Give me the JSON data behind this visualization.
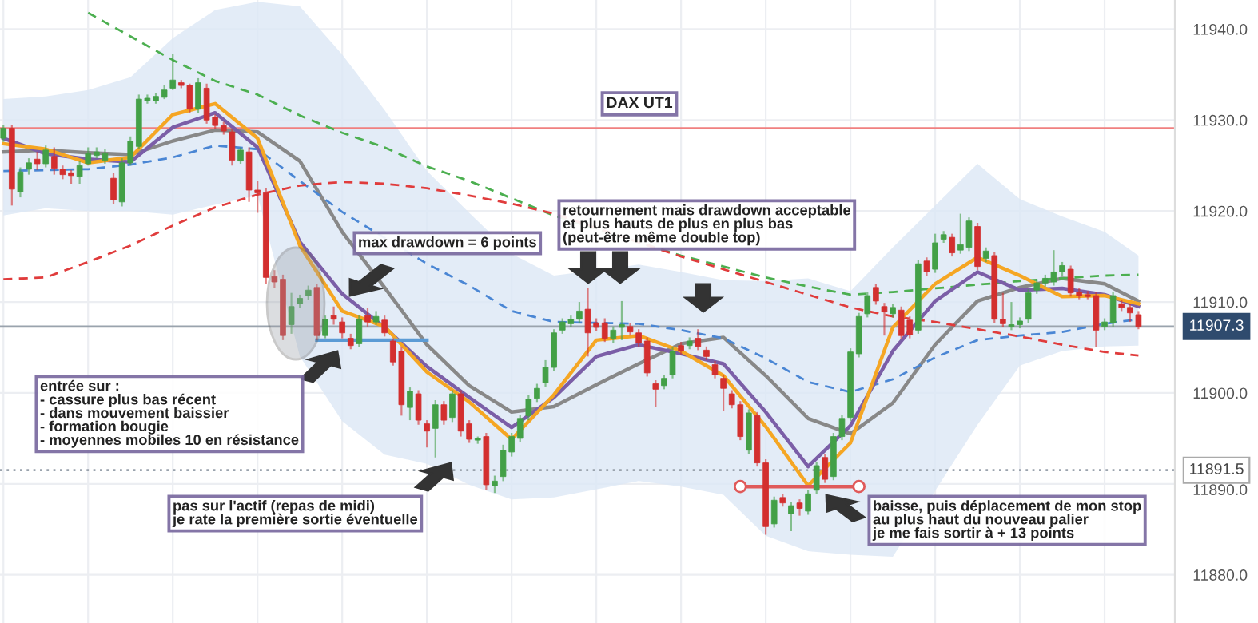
{
  "chart_data": {
    "type": "candlestick",
    "title": "DAX UT1",
    "categories": [
      null,
      null,
      null,
      null,
      null,
      null,
      null,
      null,
      null,
      null,
      null,
      null,
      null,
      null,
      null,
      null,
      null,
      null,
      null,
      null,
      null,
      null,
      null,
      null,
      null,
      null,
      null,
      null,
      null,
      null,
      null,
      null,
      null,
      null,
      null,
      null,
      null,
      null,
      null,
      null,
      null,
      null,
      null,
      null,
      null,
      null,
      null,
      null,
      null,
      null,
      null,
      null,
      null,
      null,
      null,
      null,
      null,
      null,
      null,
      null,
      null,
      null,
      null,
      null,
      null,
      null,
      null,
      null,
      null,
      null,
      null,
      null,
      null,
      null,
      null,
      null,
      null,
      null,
      null,
      null,
      null,
      null,
      null,
      null,
      null,
      null,
      null,
      null,
      null,
      null,
      null,
      null,
      null,
      null,
      null,
      null,
      null,
      null,
      null,
      null,
      null,
      null,
      null,
      null,
      null,
      null,
      null,
      null,
      null,
      null,
      null,
      null,
      null,
      null,
      null,
      null,
      null,
      null,
      null,
      null,
      null,
      null,
      null,
      null,
      null,
      null,
      null,
      null,
      null,
      null,
      null,
      null,
      null,
      null,
      null
    ],
    "ohlc": [
      [
        11928.0,
        11929.5,
        11927.6,
        11929.1
      ],
      [
        11929.1,
        11929.5,
        11920.6,
        11922.4
      ],
      [
        11922.1,
        11924.8,
        11921.5,
        11924.3
      ],
      [
        11924.6,
        11925.8,
        11924.0,
        11925.3
      ],
      [
        11925.7,
        11926.5,
        11924.5,
        11925.2
      ],
      [
        11925.2,
        11927.2,
        11924.8,
        11926.7
      ],
      [
        11926.0,
        11927.0,
        11924.0,
        11924.7
      ],
      [
        11924.6,
        11925.0,
        11923.5,
        11924.0
      ],
      [
        11924.2,
        11924.5,
        11923.0,
        11923.9
      ],
      [
        11923.8,
        11925.5,
        11923.0,
        11925.0
      ],
      [
        11925.2,
        11927.0,
        11925.0,
        11926.3
      ],
      [
        11926.1,
        11927.0,
        11925.8,
        11926.5
      ],
      [
        11925.6,
        11926.8,
        11925.2,
        11926.3
      ],
      [
        11923.6,
        11924.2,
        11920.8,
        11921.2
      ],
      [
        11921.0,
        11925.8,
        11920.5,
        11925.3
      ],
      [
        11925.3,
        11928.2,
        11925.0,
        11927.7
      ],
      [
        11927.1,
        11932.8,
        11926.8,
        11932.3
      ],
      [
        11932.1,
        11932.8,
        11931.8,
        11932.4
      ],
      [
        11932.1,
        11933.0,
        11931.8,
        11932.6
      ],
      [
        11932.5,
        11933.8,
        11932.3,
        11933.3
      ],
      [
        11933.5,
        11937.3,
        11933.3,
        11934.4
      ],
      [
        11934.1,
        11934.4,
        11933.5,
        11933.8
      ],
      [
        11933.8,
        11934.0,
        11930.8,
        11931.2
      ],
      [
        11931.2,
        11934.6,
        11930.8,
        11934.1
      ],
      [
        11933.5,
        11934.0,
        11929.6,
        11930.0
      ],
      [
        11930.3,
        11930.6,
        11929.0,
        11929.4
      ],
      [
        11929.4,
        11929.8,
        11928.4,
        11928.8
      ],
      [
        11928.7,
        11929.0,
        11925.0,
        11925.6
      ],
      [
        11925.5,
        11927.0,
        11925.2,
        11926.7
      ],
      [
        11926.5,
        11927.0,
        11921.0,
        11922.3
      ],
      [
        11922.3,
        11923.3,
        11919.8,
        11922.0
      ],
      [
        11922.0,
        11922.5,
        11912.0,
        11912.7
      ],
      [
        11912.8,
        11913.5,
        11911.5,
        11912.2
      ],
      [
        11912.5,
        11913.0,
        11905.8,
        11906.3
      ],
      [
        11907.5,
        11911.0,
        11906.5,
        11909.5
      ],
      [
        11909.8,
        11910.8,
        11909.3,
        11910.4
      ],
      [
        11910.7,
        11911.8,
        11910.2,
        11911.3
      ],
      [
        11911.6,
        11912.0,
        11905.8,
        11906.3
      ],
      [
        11906.3,
        11908.5,
        11906.0,
        11908.1
      ],
      [
        11908.5,
        11909.5,
        11907.5,
        11908.1
      ],
      [
        11907.8,
        11908.3,
        11906.0,
        11906.6
      ],
      [
        11906.0,
        11906.5,
        11904.8,
        11905.2
      ],
      [
        11905.4,
        11908.5,
        11905.0,
        11908.1
      ],
      [
        11908.5,
        11909.3,
        11907.3,
        11907.8
      ],
      [
        11907.8,
        11909.0,
        11907.5,
        11908.4
      ],
      [
        11908.0,
        11908.5,
        11906.2,
        11906.6
      ],
      [
        11905.7,
        11906.0,
        11903.0,
        11903.4
      ],
      [
        11904.6,
        11905.0,
        11897.5,
        11898.7
      ],
      [
        11898.4,
        11900.6,
        11897.0,
        11900.2
      ],
      [
        11899.9,
        11900.3,
        11896.5,
        11897.0
      ],
      [
        11896.6,
        11897.0,
        11894.0,
        11895.8
      ],
      [
        11896.1,
        11899.2,
        11892.9,
        11898.7
      ],
      [
        11898.7,
        11899.1,
        11896.5,
        11897.0
      ],
      [
        11897.3,
        11900.3,
        11896.8,
        11899.9
      ],
      [
        11899.9,
        11900.3,
        11895.2,
        11895.8
      ],
      [
        11896.6,
        11897.0,
        11894.5,
        11894.9
      ],
      [
        11894.8,
        11895.2,
        11894.4,
        11895.0
      ],
      [
        11895.2,
        11895.6,
        11889.3,
        11889.9
      ],
      [
        11889.8,
        11890.9,
        11889.0,
        11890.3
      ],
      [
        11890.8,
        11894.3,
        11890.3,
        11893.7
      ],
      [
        11893.5,
        11895.6,
        11893.0,
        11895.2
      ],
      [
        11895.0,
        11897.6,
        11894.6,
        11897.2
      ],
      [
        11897.5,
        11899.8,
        11897.0,
        11899.3
      ],
      [
        11899.4,
        11901.0,
        11899.0,
        11900.5
      ],
      [
        11901.1,
        11903.6,
        11900.7,
        11902.8
      ],
      [
        11902.8,
        11907.0,
        11902.4,
        11906.6
      ],
      [
        11906.9,
        11908.2,
        11906.5,
        11907.8
      ],
      [
        11907.6,
        11908.5,
        11907.2,
        11908.1
      ],
      [
        11908.1,
        11910.0,
        11907.7,
        11909.0
      ],
      [
        11909.2,
        11911.5,
        11904.0,
        11906.6
      ],
      [
        11907.7,
        11908.2,
        11906.8,
        11907.2
      ],
      [
        11907.7,
        11908.2,
        11905.6,
        11906.0
      ],
      [
        11906.0,
        11907.3,
        11905.5,
        11906.9
      ],
      [
        11907.2,
        11910.1,
        11905.8,
        11907.5
      ],
      [
        11907.3,
        11907.7,
        11906.3,
        11906.7
      ],
      [
        11906.6,
        11907.0,
        11905.1,
        11905.5
      ],
      [
        11905.7,
        11906.1,
        11901.8,
        11902.2
      ],
      [
        11901.0,
        11901.4,
        11898.5,
        11900.4
      ],
      [
        11900.8,
        11902.0,
        11900.4,
        11901.6
      ],
      [
        11902.0,
        11905.0,
        11901.6,
        11904.6
      ],
      [
        11905.2,
        11905.6,
        11904.2,
        11904.6
      ],
      [
        11905.2,
        11906.1,
        11904.8,
        11905.7
      ],
      [
        11906.0,
        11907.0,
        11904.7,
        11905.1
      ],
      [
        11904.7,
        11905.1,
        11903.6,
        11904.0
      ],
      [
        11903.1,
        11903.5,
        11901.6,
        11902.0
      ],
      [
        11901.6,
        11902.0,
        11898.0,
        11900.5
      ],
      [
        11899.9,
        11900.3,
        11898.3,
        11898.7
      ],
      [
        11898.7,
        11899.1,
        11894.8,
        11895.2
      ],
      [
        11893.7,
        11898.2,
        11893.3,
        11897.8
      ],
      [
        11897.5,
        11897.9,
        11891.9,
        11892.3
      ],
      [
        11892.3,
        11892.7,
        11884.4,
        11885.3
      ],
      [
        11885.6,
        11888.6,
        11885.2,
        11888.2
      ],
      [
        11888.5,
        11888.9,
        11887.5,
        11887.9
      ],
      [
        11886.7,
        11888.0,
        11884.8,
        11887.6
      ],
      [
        11887.9,
        11888.3,
        11886.5,
        11887.3
      ],
      [
        11887.0,
        11889.3,
        11886.6,
        11888.9
      ],
      [
        11889.3,
        11892.4,
        11888.9,
        11892.0
      ],
      [
        11892.9,
        11893.3,
        11890.1,
        11890.5
      ],
      [
        11890.8,
        11895.6,
        11890.4,
        11895.2
      ],
      [
        11895.2,
        11897.6,
        11894.8,
        11897.2
      ],
      [
        11897.3,
        11904.9,
        11896.9,
        11904.5
      ],
      [
        11904.3,
        11908.8,
        11903.9,
        11908.4
      ],
      [
        11908.7,
        11911.1,
        11908.3,
        11910.7
      ],
      [
        11911.6,
        11912.0,
        11909.7,
        11910.1
      ],
      [
        11909.5,
        11909.9,
        11906.3,
        11908.9
      ],
      [
        11908.7,
        11909.8,
        11908.3,
        11909.4
      ],
      [
        11909.1,
        11909.5,
        11905.9,
        11906.3
      ],
      [
        11908.0,
        11908.4,
        11906.0,
        11906.4
      ],
      [
        11906.9,
        11914.6,
        11906.5,
        11914.2
      ],
      [
        11914.5,
        11914.9,
        11912.9,
        11913.3
      ],
      [
        11913.6,
        11917.5,
        11913.2,
        11916.5
      ],
      [
        11916.9,
        11917.8,
        11916.5,
        11917.4
      ],
      [
        11917.1,
        11917.5,
        11915.0,
        11915.4
      ],
      [
        11915.7,
        11919.7,
        11915.3,
        11916.3
      ],
      [
        11916.0,
        11919.3,
        11915.6,
        11918.9
      ],
      [
        11918.3,
        11918.7,
        11913.5,
        11913.9
      ],
      [
        11914.8,
        11916.0,
        11914.4,
        11915.6
      ],
      [
        11915.1,
        11915.5,
        11907.7,
        11908.1
      ],
      [
        11908.1,
        11911.0,
        11907.2,
        11907.6
      ],
      [
        11907.3,
        11910.0,
        11906.9,
        11907.5
      ],
      [
        11907.5,
        11908.3,
        11907.1,
        11907.9
      ],
      [
        11908.1,
        11911.4,
        11907.7,
        11911.0
      ],
      [
        11911.3,
        11912.5,
        11910.9,
        11912.1
      ],
      [
        11912.1,
        11913.0,
        11911.7,
        11912.6
      ],
      [
        11912.2,
        11915.7,
        11911.8,
        11913.3
      ],
      [
        11913.3,
        11914.4,
        11912.9,
        11914.0
      ],
      [
        11913.6,
        11914.0,
        11910.6,
        11911.0
      ],
      [
        11911.1,
        11911.5,
        11910.3,
        11910.7
      ],
      [
        11910.8,
        11911.2,
        11910.3,
        11910.6
      ],
      [
        11910.7,
        11911.1,
        11905.0,
        11906.9
      ],
      [
        11907.3,
        11908.2,
        11906.9,
        11907.8
      ],
      [
        11907.7,
        11911.1,
        11907.3,
        11910.7
      ],
      [
        11909.8,
        11910.2,
        11909.0,
        11909.4
      ],
      [
        11909.4,
        11909.8,
        11907.8,
        11908.8
      ],
      [
        11908.6,
        11909.0,
        11907.0,
        11907.3
      ]
    ],
    "series": [
      {
        "type": "line",
        "color": "#888888",
        "line_style": "solid",
        "values": [
          11926.5,
          null,
          null,
          null,
          null,
          11926.7,
          null,
          null,
          null,
          null,
          11926.4,
          null,
          null,
          null,
          null,
          11926.2,
          null,
          null,
          null,
          null,
          11927.7,
          null,
          null,
          null,
          null,
          11928.9,
          null,
          null,
          null,
          null,
          11928.7,
          null,
          null,
          null,
          null,
          11925.5,
          null,
          null,
          null,
          null,
          11917.7,
          null,
          null,
          null,
          null,
          11911.6,
          null,
          null,
          null,
          null,
          11905.3,
          null,
          null,
          null,
          null,
          11900.8,
          null,
          null,
          null,
          null,
          11897.9,
          null,
          null,
          null,
          null,
          11898.5,
          null,
          null,
          null,
          null,
          11900.9,
          null,
          null,
          null,
          null,
          11903.2,
          null,
          null,
          null,
          null,
          11905.4,
          null,
          null,
          null,
          null,
          11906.1,
          null,
          null,
          null,
          null,
          11901.9,
          null,
          null,
          null,
          null,
          11897.2,
          null,
          null,
          null,
          null,
          11895.5,
          null,
          null,
          null,
          null,
          11898.9,
          null,
          null,
          null,
          null,
          11905.3,
          null,
          null,
          null,
          null,
          11910.1,
          null,
          null,
          null,
          null,
          11911.6,
          null,
          null,
          null,
          null,
          11912.6,
          null,
          null,
          null,
          null,
          11912.0,
          null,
          null,
          null,
          11910.1
        ],
        "upper": [
          11932.3,
          null,
          null,
          null,
          null,
          11932.6,
          null,
          null,
          null,
          null,
          11933.3,
          null,
          null,
          null,
          null,
          11934.7,
          null,
          null,
          null,
          null,
          11939.0,
          null,
          null,
          null,
          null,
          11942.1,
          null,
          null,
          null,
          null,
          11943.0,
          null,
          null,
          null,
          null,
          11942.5,
          null,
          null,
          null,
          null,
          11937.2,
          null,
          null,
          null,
          null,
          11931.1,
          null,
          null,
          null,
          null,
          11924.4,
          null,
          null,
          null,
          null,
          11919.8,
          null,
          null,
          null,
          null,
          11915.3,
          null,
          null,
          null,
          null,
          11912.9,
          null,
          null,
          null,
          null,
          null,
          null,
          null,
          null,
          null,
          11914.1,
          null,
          null,
          null,
          null,
          11913.3,
          null,
          null,
          null,
          null,
          11912.4,
          null,
          null,
          null,
          null,
          11912.3,
          null,
          null,
          null,
          null,
          11912.6,
          null,
          null,
          null,
          null,
          11911.2,
          null,
          null,
          null,
          null,
          11916.0,
          null,
          null,
          null,
          null,
          null,
          null,
          null,
          null,
          null,
          11925.2,
          null,
          null,
          null,
          null,
          11921.3,
          null,
          null,
          null,
          null,
          11919.4,
          null,
          null,
          null,
          null,
          11917.7,
          null,
          null,
          null,
          11915.1
        ],
        "lower": [
          11919.5,
          null,
          null,
          null,
          null,
          11920.3,
          null,
          null,
          null,
          null,
          11920.0,
          null,
          null,
          null,
          null,
          11920.0,
          null,
          null,
          null,
          null,
          11919.6,
          null,
          null,
          null,
          null,
          11920.7,
          null,
          null,
          null,
          null,
          11921.7,
          null,
          null,
          null,
          null,
          11904.0,
          null,
          null,
          null,
          null,
          11896.9,
          null,
          null,
          null,
          null,
          11893.2,
          null,
          null,
          null,
          null,
          11892.2,
          null,
          null,
          null,
          null,
          11889.9,
          null,
          null,
          null,
          null,
          11888.3,
          null,
          null,
          null,
          null,
          11888.5,
          null,
          null,
          null,
          null,
          null,
          null,
          null,
          null,
          null,
          11890.3,
          null,
          null,
          null,
          null,
          11889.7,
          null,
          null,
          null,
          null,
          11888.8,
          null,
          null,
          null,
          null,
          11884.3,
          null,
          null,
          null,
          null,
          11882.6,
          null,
          null,
          null,
          null,
          11882.2,
          null,
          null,
          null,
          null,
          11882.0,
          null,
          null,
          null,
          null,
          null,
          null,
          null,
          null,
          null,
          11896.5,
          null,
          null,
          null,
          null,
          11903.0,
          null,
          null,
          null,
          null,
          11904.6,
          null,
          null,
          null,
          null,
          11905.1,
          null,
          null,
          null,
          11905.2
        ]
      },
      {
        "type": "line",
        "color": "#4caf50",
        "line_style": "dashed",
        "values": [
          null,
          null,
          null,
          null,
          null,
          null,
          null,
          null,
          null,
          null,
          11941.8,
          null,
          null,
          null,
          null,
          11939.2,
          null,
          null,
          null,
          null,
          11936.6,
          null,
          null,
          null,
          null,
          11934.3,
          null,
          null,
          null,
          null,
          11932.8,
          null,
          null,
          null,
          null,
          11930.5,
          null,
          null,
          null,
          null,
          11928.6,
          null,
          null,
          null,
          null,
          11927.0,
          null,
          null,
          null,
          null,
          11924.9,
          null,
          null,
          null,
          null,
          11923.3,
          null,
          null,
          null,
          null,
          11921.4,
          null,
          null,
          null,
          null,
          11919.5,
          null,
          null,
          null,
          null,
          null,
          null,
          null,
          null,
          null,
          null,
          null,
          null,
          null,
          null,
          11915.1,
          null,
          null,
          null,
          null,
          11913.9,
          null,
          null,
          null,
          null,
          11912.7,
          null,
          null,
          null,
          null,
          11911.7,
          null,
          null,
          null,
          null,
          11910.8,
          null,
          null,
          null,
          null,
          11911.1,
          null,
          null,
          null,
          null,
          11911.5,
          null,
          null,
          null,
          null,
          11911.9,
          null,
          null,
          null,
          null,
          11912.3,
          null,
          null,
          null,
          null,
          11912.6,
          null,
          null,
          null,
          null,
          11912.9,
          null,
          null,
          null,
          11913.0
        ]
      },
      {
        "type": "line",
        "color": "#4a86d4",
        "line_style": "dashed",
        "values": [
          11924.4,
          null,
          null,
          null,
          null,
          11924.5,
          null,
          null,
          null,
          null,
          11924.6,
          null,
          null,
          null,
          null,
          11925.1,
          null,
          null,
          null,
          null,
          11925.9,
          null,
          null,
          null,
          null,
          11927.2,
          null,
          null,
          null,
          null,
          11926.8,
          null,
          null,
          null,
          null,
          11923.3,
          null,
          null,
          null,
          null,
          11919.9,
          null,
          null,
          null,
          null,
          null,
          null,
          null,
          null,
          null,
          11914.2,
          null,
          null,
          null,
          null,
          11911.8,
          null,
          null,
          null,
          null,
          11909.0,
          null,
          null,
          null,
          null,
          11907.8,
          null,
          null,
          null,
          null,
          11907.7,
          null,
          null,
          null,
          null,
          11907.6,
          null,
          null,
          null,
          null,
          11906.9,
          null,
          null,
          null,
          null,
          11906.0,
          null,
          null,
          null,
          null,
          11903.8,
          null,
          null,
          null,
          null,
          11901.2,
          null,
          null,
          null,
          null,
          11900.1,
          null,
          null,
          null,
          null,
          11901.5,
          null,
          null,
          null,
          null,
          11903.9,
          null,
          null,
          null,
          null,
          11905.8,
          null,
          null,
          null,
          null,
          11906.3,
          null,
          null,
          null,
          null,
          11906.7,
          null,
          null,
          null,
          null,
          11907.6,
          null,
          null,
          null,
          11908.1
        ]
      },
      {
        "type": "line",
        "color": "#e03c3c",
        "line_style": "dashed",
        "values": [
          11912.5,
          null,
          null,
          null,
          null,
          11912.7,
          null,
          null,
          null,
          null,
          11914.4,
          null,
          null,
          null,
          null,
          11916.2,
          null,
          null,
          null,
          null,
          11918.4,
          null,
          null,
          null,
          null,
          11920.4,
          null,
          null,
          null,
          null,
          11921.8,
          null,
          null,
          null,
          null,
          11922.8,
          null,
          null,
          null,
          null,
          11923.2,
          null,
          null,
          null,
          null,
          11923.0,
          null,
          null,
          null,
          null,
          11922.5,
          null,
          null,
          null,
          null,
          11921.7,
          null,
          null,
          null,
          null,
          11920.8,
          null,
          null,
          null,
          null,
          11919.7,
          null,
          null,
          null,
          null,
          null,
          null,
          null,
          null,
          null,
          null,
          null,
          null,
          null,
          null,
          11915.0,
          null,
          null,
          null,
          null,
          11913.6,
          null,
          null,
          null,
          null,
          11912.2,
          null,
          null,
          null,
          null,
          11910.8,
          null,
          null,
          null,
          null,
          11909.4,
          null,
          null,
          null,
          null,
          11908.4,
          null,
          null,
          null,
          null,
          11907.8,
          null,
          null,
          null,
          null,
          11907.0,
          null,
          null,
          null,
          null,
          11906.2,
          null,
          null,
          null,
          null,
          11905.3,
          null,
          null,
          null,
          null,
          11904.5,
          null,
          null,
          null,
          11904.1
        ]
      },
      {
        "type": "line",
        "color": "#7b5ea7",
        "line_style": "solid",
        "values": [
          11928.0,
          null,
          null,
          null,
          null,
          11926.3,
          null,
          null,
          null,
          null,
          11925.7,
          null,
          null,
          null,
          null,
          11925.4,
          null,
          null,
          null,
          null,
          11929.2,
          null,
          null,
          null,
          null,
          11930.8,
          null,
          null,
          null,
          null,
          11927.0,
          null,
          null,
          null,
          null,
          11916.6,
          null,
          null,
          null,
          null,
          11910.9,
          null,
          null,
          null,
          null,
          11907.2,
          null,
          null,
          null,
          null,
          11902.9,
          null,
          null,
          null,
          null,
          11899.5,
          null,
          null,
          null,
          null,
          11896.2,
          null,
          null,
          null,
          null,
          11899.5,
          null,
          null,
          null,
          null,
          11904.0,
          null,
          null,
          null,
          null,
          11905.3,
          null,
          null,
          null,
          null,
          11904.3,
          null,
          null,
          null,
          null,
          11903.2,
          null,
          null,
          null,
          null,
          11897.9,
          null,
          null,
          null,
          null,
          11891.9,
          null,
          null,
          null,
          null,
          11896.4,
          null,
          null,
          null,
          null,
          11904.6,
          null,
          null,
          null,
          null,
          11910.1,
          null,
          null,
          null,
          null,
          11913.3,
          null,
          null,
          null,
          null,
          11911.3,
          null,
          null,
          null,
          null,
          11911.5,
          null,
          null,
          null,
          null,
          11910.8,
          null,
          null,
          null,
          11909.5
        ]
      },
      {
        "type": "line",
        "color": "#f5a623",
        "line_style": "solid",
        "values": [
          11927.4,
          null,
          null,
          null,
          null,
          11926.8,
          null,
          null,
          null,
          null,
          11925.3,
          null,
          null,
          null,
          null,
          11925.9,
          null,
          null,
          null,
          null,
          11930.6,
          null,
          null,
          null,
          null,
          11931.8,
          null,
          null,
          null,
          null,
          11928.0,
          null,
          null,
          null,
          null,
          11916.2,
          null,
          null,
          null,
          null,
          11909.0,
          null,
          null,
          null,
          null,
          11907.3,
          null,
          null,
          null,
          null,
          11902.3,
          null,
          null,
          null,
          null,
          11899.0,
          null,
          null,
          null,
          null,
          11894.9,
          null,
          null,
          null,
          null,
          11899.8,
          null,
          null,
          null,
          null,
          11905.8,
          null,
          null,
          null,
          null,
          11906.3,
          null,
          null,
          null,
          null,
          11904.6,
          null,
          null,
          null,
          null,
          11901.9,
          null,
          null,
          null,
          null,
          11896.3,
          null,
          null,
          null,
          null,
          11889.8,
          null,
          null,
          null,
          null,
          11894.5,
          null,
          null,
          null,
          null,
          11907.2,
          null,
          null,
          null,
          null,
          11912.0,
          null,
          null,
          null,
          null,
          11914.9,
          null,
          null,
          null,
          null,
          11912.9,
          null,
          null,
          null,
          null,
          11910.6,
          null,
          null,
          null,
          null,
          11910.7,
          null,
          null,
          null,
          11909.8
        ]
      },
      {
        "type": "line",
        "color": "#5b9bd5",
        "line_style": "solid",
        "values": [
          null,
          null,
          null,
          null,
          null,
          null,
          null,
          null,
          null,
          null,
          null,
          null,
          null,
          null,
          null,
          null,
          null,
          null,
          null,
          null,
          null,
          null,
          null,
          null,
          null,
          null,
          null,
          null,
          null,
          null,
          null,
          null,
          null,
          null,
          null,
          null,
          null,
          11905.8,
          null,
          null,
          null,
          null,
          null,
          null,
          null,
          null,
          null,
          null,
          null,
          null,
          11905.8,
          null,
          null,
          null,
          null,
          null,
          null,
          null,
          null,
          null,
          null,
          null,
          null,
          null,
          null,
          null,
          null,
          null,
          null,
          null,
          null,
          null,
          null,
          null,
          null,
          null,
          null,
          null,
          null,
          null,
          null,
          null,
          null,
          null,
          null,
          null,
          null,
          null,
          null,
          null,
          null,
          null,
          null,
          null,
          null,
          null,
          null,
          null,
          null,
          null,
          null,
          null,
          null,
          null,
          null,
          null,
          null,
          null,
          null,
          null,
          null,
          null,
          null,
          null,
          null,
          null,
          null,
          null,
          null,
          null,
          null,
          null,
          null,
          null,
          null,
          null,
          null,
          null,
          null,
          null,
          null,
          null,
          null,
          null,
          null
        ]
      },
      {
        "type": "line",
        "color": "#e05a5a",
        "line_style": "solid",
        "marker": "circle",
        "values": [
          null,
          null,
          null,
          null,
          null,
          null,
          null,
          null,
          null,
          null,
          null,
          null,
          null,
          null,
          null,
          null,
          null,
          null,
          null,
          null,
          null,
          null,
          null,
          null,
          null,
          null,
          null,
          null,
          null,
          null,
          null,
          null,
          null,
          null,
          null,
          null,
          null,
          null,
          null,
          null,
          null,
          null,
          null,
          null,
          null,
          null,
          null,
          null,
          null,
          null,
          null,
          null,
          null,
          null,
          null,
          null,
          null,
          null,
          null,
          null,
          null,
          null,
          null,
          null,
          null,
          null,
          null,
          null,
          null,
          null,
          null,
          null,
          null,
          null,
          null,
          null,
          null,
          null,
          null,
          null,
          null,
          null,
          null,
          null,
          null,
          null,
          null,
          11889.7,
          null,
          null,
          null,
          null,
          null,
          null,
          null,
          null,
          null,
          null,
          null,
          null,
          null,
          11889.7,
          null,
          null,
          null,
          null,
          null,
          null,
          null,
          null,
          null,
          null,
          null,
          null,
          null,
          null,
          null,
          null,
          null,
          null,
          null,
          null,
          null,
          null,
          null,
          null,
          null,
          null,
          null,
          null,
          null,
          null,
          null,
          null,
          null
        ]
      }
    ],
    "ref_lines": [
      {
        "axis": "y",
        "value": 11929.1,
        "color": "#f08080",
        "line_style": "solid"
      },
      {
        "axis": "y",
        "value": 11907.3,
        "label": "11907.3",
        "color": "#9aa3ad",
        "line_style": "solid"
      },
      {
        "axis": "y",
        "value": 11891.5,
        "label": "11891.5",
        "color": "#9aa3ad",
        "line_style": "dotted"
      }
    ],
    "ylim": [
      11874.7,
      11943.2
    ],
    "yticks": [
      {
        "value": 11880,
        "label": "11880.0"
      },
      {
        "value": 11890,
        "label": "11890.0"
      },
      {
        "value": 11900,
        "label": "11900.0"
      },
      {
        "value": 11910,
        "label": "11910.0"
      },
      {
        "value": 11920,
        "label": "11920.0"
      },
      {
        "value": 11930,
        "label": "11930.0"
      },
      {
        "value": 11940,
        "label": "11940.0"
      }
    ],
    "tick_labels": "y",
    "grid": true,
    "annotations": [
      "max drawdown = 6 points",
      "retournement mais drawdown acceptable\net plus hauts de plus en plus bas\n(peut-être même double top)",
      "entrée sur :\n- cassure plus bas récent\n- dans mouvement baissier\n- formation bougie\n- moyennes mobiles 10 en résistance",
      "pas sur l'actif (repas de midi)\nje rate la première sortie éventuelle",
      "baisse, puis déplacement de mon stop\nau plus haut du nouveau palier\nje me fais sortir à + 13 points"
    ]
  }
}
